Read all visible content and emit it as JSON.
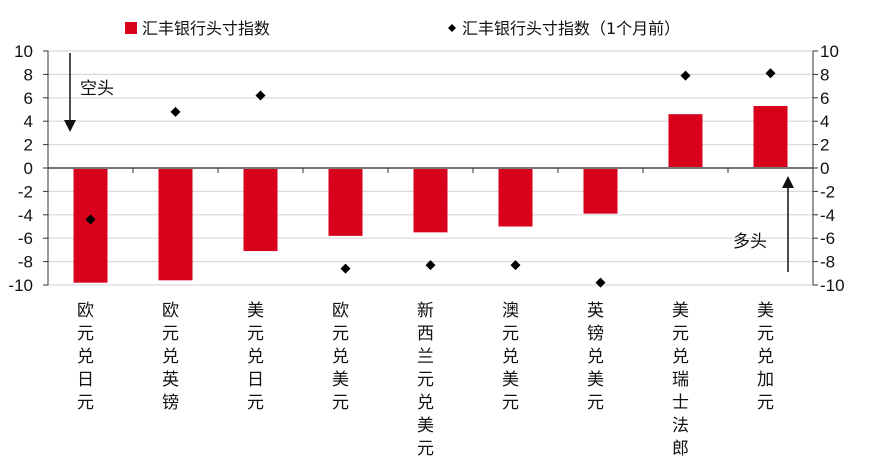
{
  "chart_data": {
    "type": "bar",
    "title": "",
    "xlabel": "",
    "ylabel": "",
    "ylim": [
      -10,
      10
    ],
    "yticks": [
      10,
      8,
      6,
      4,
      2,
      0,
      -2,
      -4,
      -6,
      -8,
      -10
    ],
    "grid": true,
    "legend_position": "top",
    "categories": [
      "欧元兑日元",
      "欧元兑英镑",
      "美元兑日元",
      "欧元兑美元",
      "新西兰元兑美元",
      "澳元兑美元",
      "英镑兑美元",
      "美元兑瑞士法郎",
      "美元兑加元"
    ],
    "series": [
      {
        "name": "汇丰银行头寸指数",
        "kind": "bar",
        "color": "#d9001b",
        "values": [
          -9.8,
          -9.6,
          -7.1,
          -5.8,
          -5.5,
          -5.0,
          -3.9,
          4.6,
          5.3
        ]
      },
      {
        "name": "汇丰银行头寸指数（1个月前）",
        "kind": "marker",
        "color": "#000000",
        "values": [
          -4.4,
          4.8,
          6.2,
          -8.6,
          -8.3,
          -8.3,
          -9.8,
          7.9,
          8.1
        ]
      }
    ],
    "annotations": [
      {
        "text": "空头",
        "arrow": "down"
      },
      {
        "text": "多头",
        "arrow": "up"
      }
    ]
  }
}
